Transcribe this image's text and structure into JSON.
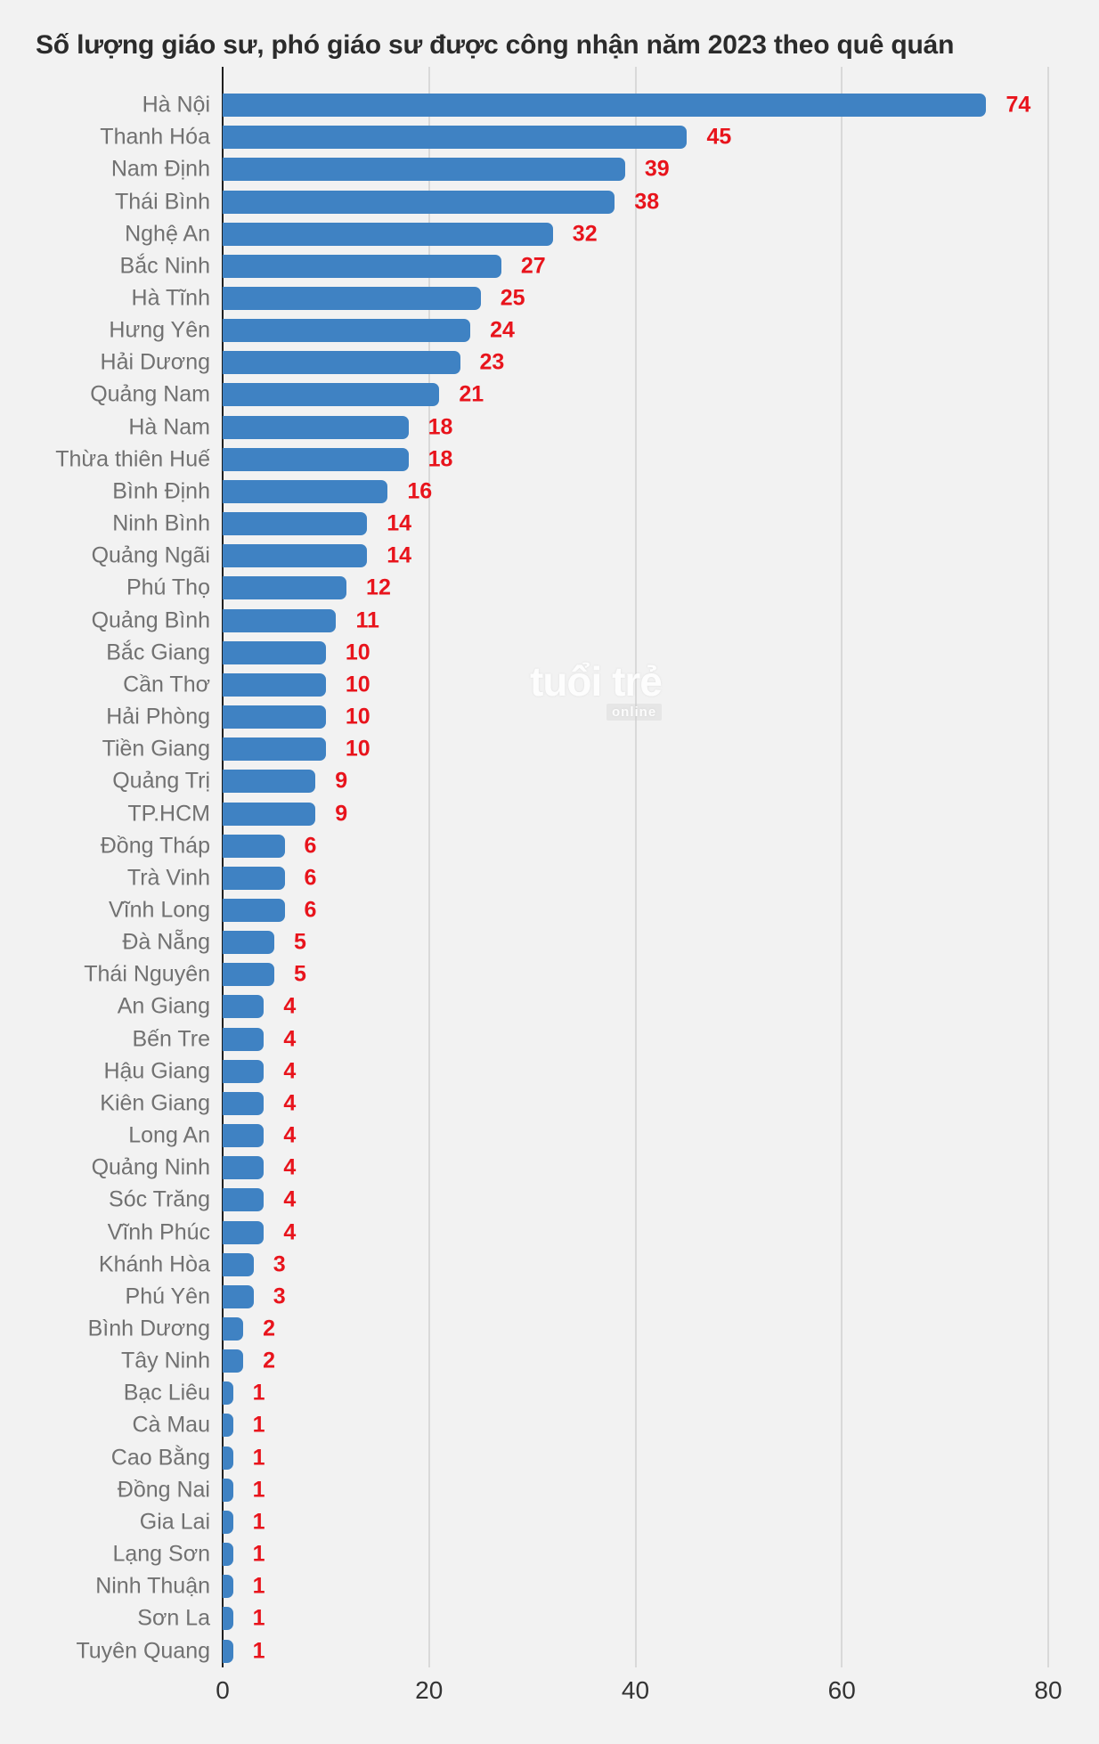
{
  "chart_data": {
    "type": "bar",
    "orientation": "horizontal",
    "title": "Số lượng giáo sư, phó giáo sư được công nhận năm 2023 theo quê quán",
    "categories": [
      "Hà Nội",
      "Thanh Hóa",
      "Nam Định",
      "Thái Bình",
      "Nghệ An",
      "Bắc Ninh",
      "Hà Tĩnh",
      "Hưng Yên",
      "Hải Dương",
      "Quảng Nam",
      "Hà Nam",
      "Thừa thiên Huế",
      "Bình Định",
      "Ninh Bình",
      "Quảng Ngãi",
      "Phú Thọ",
      "Quảng Bình",
      "Bắc Giang",
      "Cần Thơ",
      "Hải Phòng",
      "Tiền Giang",
      "Quảng Trị",
      "TP.HCM",
      "Đồng Tháp",
      "Trà Vinh",
      "Vĩnh Long",
      "Đà Nẵng",
      "Thái Nguyên",
      "An Giang",
      "Bến Tre",
      "Hậu Giang",
      "Kiên Giang",
      "Long An",
      "Quảng Ninh",
      "Sóc Trăng",
      "Vĩnh Phúc",
      "Khánh Hòa",
      "Phú Yên",
      "Bình Dương",
      "Tây Ninh",
      "Bạc Liêu",
      "Cà Mau",
      "Cao Bằng",
      "Đồng Nai",
      "Gia Lai",
      "Lạng Sơn",
      "Ninh Thuận",
      "Sơn La",
      "Tuyên Quang"
    ],
    "values": [
      74,
      45,
      39,
      38,
      32,
      27,
      25,
      24,
      23,
      21,
      18,
      18,
      16,
      14,
      14,
      12,
      11,
      10,
      10,
      10,
      10,
      9,
      9,
      6,
      6,
      6,
      5,
      5,
      4,
      4,
      4,
      4,
      4,
      4,
      4,
      4,
      3,
      3,
      2,
      2,
      1,
      1,
      1,
      1,
      1,
      1,
      1,
      1,
      1
    ],
    "xlabel": "",
    "ylabel": "",
    "xlim": [
      0,
      80
    ],
    "x_ticks": [
      0,
      20,
      40,
      60,
      80
    ],
    "grid": true,
    "legend": false,
    "value_labels": true
  },
  "watermark": {
    "line1": "tuổi trẻ",
    "line2": "online"
  },
  "colors": {
    "bar": "#3f82c3",
    "value_label": "#e8141c",
    "category_label": "#717171",
    "tick_label": "#333333",
    "gridline": "#d9d9d9",
    "axis_line": "#1f1f1f",
    "title": "#2b2b2b",
    "background": "#f2f2f2"
  }
}
